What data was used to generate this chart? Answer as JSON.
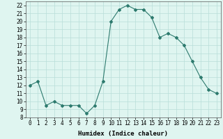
{
  "xlabel": "Humidex (Indice chaleur)",
  "x": [
    0,
    1,
    2,
    3,
    4,
    5,
    6,
    7,
    8,
    9,
    10,
    11,
    12,
    13,
    14,
    15,
    16,
    17,
    18,
    19,
    20,
    21,
    22,
    23
  ],
  "y": [
    12,
    12.5,
    9.5,
    10,
    9.5,
    9.5,
    9.5,
    8.5,
    9.5,
    12.5,
    20,
    21.5,
    22,
    21.5,
    21.5,
    20.5,
    18,
    18.5,
    18,
    17,
    15,
    13,
    11.5,
    11
  ],
  "line_color": "#2d7a6e",
  "marker": "D",
  "marker_size": 2,
  "bg_color": "#dff5f0",
  "grid_color": "#b8ddd8",
  "ylim": [
    8,
    22.5
  ],
  "yticks": [
    8,
    9,
    10,
    11,
    12,
    13,
    14,
    15,
    16,
    17,
    18,
    19,
    20,
    21,
    22
  ],
  "xticks": [
    0,
    1,
    2,
    3,
    4,
    5,
    6,
    7,
    8,
    9,
    10,
    11,
    12,
    13,
    14,
    15,
    16,
    17,
    18,
    19,
    20,
    21,
    22,
    23
  ],
  "label_fontsize": 6.5,
  "tick_fontsize": 5.5
}
